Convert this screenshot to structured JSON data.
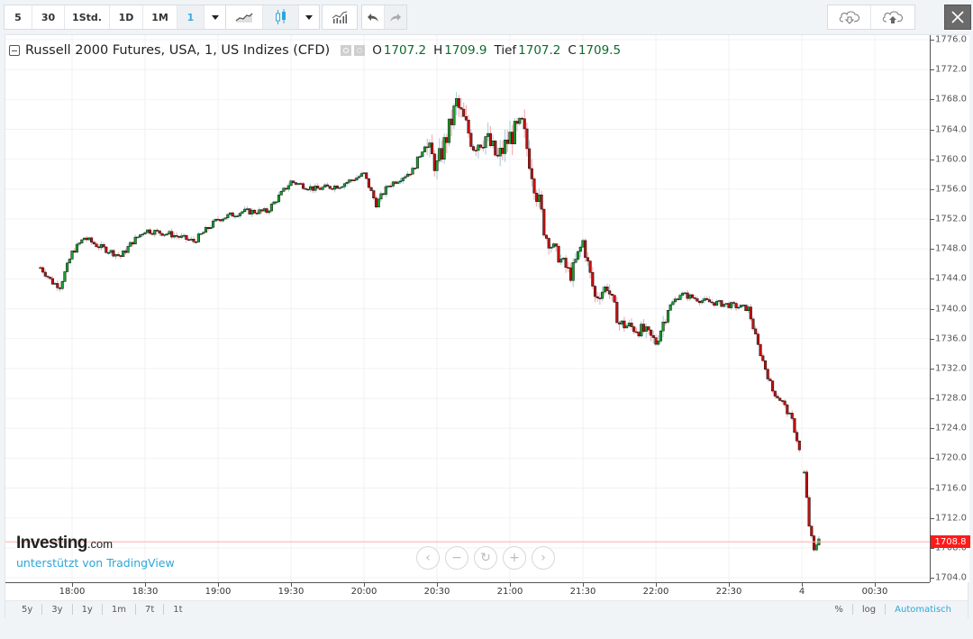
{
  "toolbar": {
    "intervals": [
      "5",
      "30",
      "1Std.",
      "1D",
      "1M",
      "1"
    ],
    "active_interval": "1",
    "chart_types": [
      "line-chart-icon",
      "candlestick-icon"
    ],
    "active_chart_type": "candlestick-icon",
    "indicators": "indicators-icon",
    "undo": "undo-icon",
    "redo": "redo-icon",
    "cloud_download": "cloud-download-icon",
    "cloud_upload": "cloud-upload-icon",
    "close": "close-icon"
  },
  "legend": {
    "title": "Russell 2000 Futures, USA, 1, US Indizes (CFD)",
    "open_label": "O",
    "open_value": "1707.2",
    "high_label": "H",
    "high_value": "1709.9",
    "low_label": "Tief",
    "low_value": "1707.2",
    "close_label": "C",
    "close_value": "1709.5"
  },
  "current_price": "1708.8",
  "branding": {
    "logo": "Investing",
    "logo_suffix": ".com",
    "powered_by": "unterstützt von TradingView"
  },
  "nav_controls": [
    "scroll-left",
    "zoom-out",
    "reset",
    "zoom-in",
    "scroll-right"
  ],
  "range_buttons": [
    "5y",
    "3y",
    "1y",
    "1m",
    "7t",
    "1t"
  ],
  "scale_buttons": [
    "%",
    "log",
    "Automatisch"
  ],
  "colors": {
    "up": "#1a9e2d",
    "down": "#c40f0f",
    "price_label_bg": "#ff1a1a",
    "accent": "#2ba7d9"
  },
  "chart_data": {
    "type": "candlestick",
    "title": "Russell 2000 Futures, USA, 1, US Indizes (CFD)",
    "xlabel": "",
    "ylabel": "",
    "ylim": [
      1703,
      1776.6
    ],
    "grid": true,
    "y_ticks": [
      "1776.0",
      "1772.0",
      "1768.0",
      "1764.0",
      "1760.0",
      "1756.0",
      "1752.0",
      "1748.0",
      "1744.0",
      "1740.0",
      "1736.0",
      "1732.0",
      "1728.0",
      "1724.0",
      "1720.0",
      "1716.0",
      "1712.0",
      "1708.0",
      "1704.0"
    ],
    "x_ticks": [
      "18:00",
      "18:30",
      "19:00",
      "19:30",
      "20:00",
      "20:30",
      "21:00",
      "21:30",
      "22:00",
      "22:30",
      "4",
      "00:30"
    ],
    "last_price": 1708.8,
    "approx_path": [
      {
        "t": "17:47",
        "p": 1745.5
      },
      {
        "t": "17:52",
        "p": 1743.5
      },
      {
        "t": "17:55",
        "p": 1743.0
      },
      {
        "t": "18:00",
        "p": 1747.5
      },
      {
        "t": "18:05",
        "p": 1749.5
      },
      {
        "t": "18:10",
        "p": 1748.5
      },
      {
        "t": "18:20",
        "p": 1747.0
      },
      {
        "t": "18:25",
        "p": 1749.0
      },
      {
        "t": "18:30",
        "p": 1750.5
      },
      {
        "t": "18:40",
        "p": 1750.0
      },
      {
        "t": "18:50",
        "p": 1749.0
      },
      {
        "t": "19:00",
        "p": 1752.0
      },
      {
        "t": "19:10",
        "p": 1753.0
      },
      {
        "t": "19:20",
        "p": 1753.0
      },
      {
        "t": "19:30",
        "p": 1757.0
      },
      {
        "t": "19:40",
        "p": 1756.0
      },
      {
        "t": "19:50",
        "p": 1756.5
      },
      {
        "t": "20:00",
        "p": 1758.0
      },
      {
        "t": "20:05",
        "p": 1754.0
      },
      {
        "t": "20:10",
        "p": 1756.5
      },
      {
        "t": "20:20",
        "p": 1758.5
      },
      {
        "t": "20:25",
        "p": 1762.0
      },
      {
        "t": "20:30",
        "p": 1759.0
      },
      {
        "t": "20:35",
        "p": 1764.0
      },
      {
        "t": "20:38",
        "p": 1767.5
      },
      {
        "t": "20:45",
        "p": 1762.0
      },
      {
        "t": "20:50",
        "p": 1763.0
      },
      {
        "t": "20:55",
        "p": 1760.0
      },
      {
        "t": "21:00",
        "p": 1763.0
      },
      {
        "t": "21:05",
        "p": 1764.5
      },
      {
        "t": "21:10",
        "p": 1757.0
      },
      {
        "t": "21:15",
        "p": 1749.5
      },
      {
        "t": "21:20",
        "p": 1747.0
      },
      {
        "t": "21:25",
        "p": 1744.5
      },
      {
        "t": "21:30",
        "p": 1749.0
      },
      {
        "t": "21:35",
        "p": 1741.5
      },
      {
        "t": "21:40",
        "p": 1743.0
      },
      {
        "t": "21:45",
        "p": 1738.0
      },
      {
        "t": "21:55",
        "p": 1737.0
      },
      {
        "t": "22:00",
        "p": 1735.5
      },
      {
        "t": "22:05",
        "p": 1740.0
      },
      {
        "t": "22:10",
        "p": 1742.0
      },
      {
        "t": "22:20",
        "p": 1741.0
      },
      {
        "t": "22:30",
        "p": 1740.5
      },
      {
        "t": "22:38",
        "p": 1740.0
      },
      {
        "t": "22:42",
        "p": 1735.0
      },
      {
        "t": "22:48",
        "p": 1729.0
      },
      {
        "t": "22:52",
        "p": 1727.5
      },
      {
        "t": "22:56",
        "p": 1725.0
      },
      {
        "t": "22:58",
        "p": 1722.5
      },
      {
        "t": "23:01",
        "p": 1718.0
      },
      {
        "t": "23:03",
        "p": 1711.0
      },
      {
        "t": "23:05",
        "p": 1707.5
      },
      {
        "t": "23:07",
        "p": 1709.5
      }
    ]
  }
}
